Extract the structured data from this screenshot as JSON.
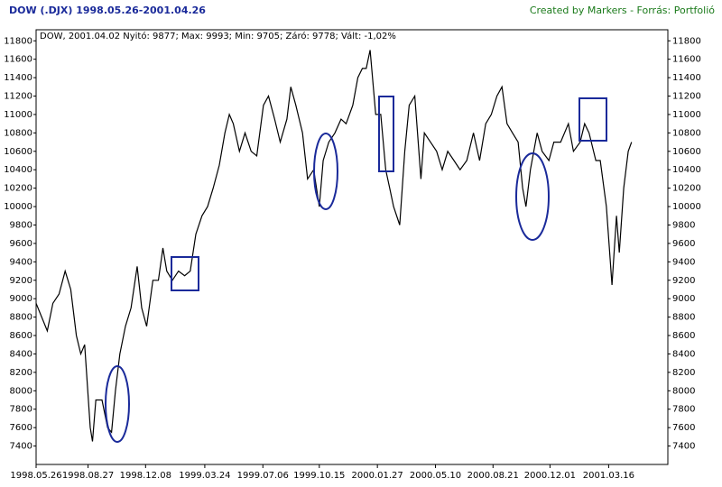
{
  "chart_data": {
    "type": "line",
    "title": "DOW  (.DJX)  1998.05.26-2001.04.26",
    "subtitle": "Created by Markers - Forrás: Portfolió",
    "annotation": "DOW, 2001.04.02 Nyitó: 9877; Max: 9993; Min: 9705; Záró: 9778; Vált: -1,02%",
    "x": [
      "1998.05.26",
      "1998.06.05",
      "1998.06.15",
      "1998.06.25",
      "1998.07.06",
      "1998.07.17",
      "1998.07.27",
      "1998.08.06",
      "1998.08.14",
      "1998.08.21",
      "1998.08.31",
      "1998.09.04",
      "1998.09.10",
      "1998.09.21",
      "1998.10.01",
      "1998.10.08",
      "1998.10.15",
      "1998.10.23",
      "1998.11.02",
      "1998.11.12",
      "1998.11.23",
      "1998.12.01",
      "1998.12.10",
      "1998.12.21",
      "1998.12.31",
      "1999.01.08",
      "1999.01.15",
      "1999.01.25",
      "1999.02.05",
      "1999.02.16",
      "1999.02.26",
      "1999.03.08",
      "1999.03.19",
      "1999.03.29",
      "1999.04.08",
      "1999.04.19",
      "1999.04.29",
      "1999.05.07",
      "1999.05.14",
      "1999.05.25",
      "1999.06.04",
      "1999.06.15",
      "1999.06.25",
      "1999.07.07",
      "1999.07.16",
      "1999.07.27",
      "1999.08.06",
      "1999.08.18",
      "1999.08.25",
      "1999.09.03",
      "1999.09.15",
      "1999.09.24",
      "1999.10.05",
      "1999.10.15",
      "1999.10.22",
      "1999.11.01",
      "1999.11.12",
      "1999.11.23",
      "1999.12.02",
      "1999.12.14",
      "1999.12.23",
      "1999.12.31",
      "2000.01.07",
      "2000.01.14",
      "2000.01.24",
      "2000.02.02",
      "2000.02.11",
      "2000.02.18",
      "2000.02.25",
      "2000.03.07",
      "2000.03.16",
      "2000.03.24",
      "2000.04.03",
      "2000.04.14",
      "2000.04.20",
      "2000.05.01",
      "2000.05.12",
      "2000.05.22",
      "2000.06.01",
      "2000.06.12",
      "2000.06.23",
      "2000.07.05",
      "2000.07.17",
      "2000.07.28",
      "2000.08.08",
      "2000.08.18",
      "2000.08.28",
      "2000.09.06",
      "2000.09.15",
      "2000.09.25",
      "2000.10.05",
      "2000.10.13",
      "2000.10.19",
      "2000.10.27",
      "2000.11.08",
      "2000.11.17",
      "2000.11.29",
      "2000.12.08",
      "2000.12.20",
      "2001.01.03",
      "2001.01.12",
      "2001.01.24",
      "2001.02.01",
      "2001.02.09",
      "2001.02.21",
      "2001.03.01",
      "2001.03.12",
      "2001.03.22",
      "2001.03.30",
      "2001.04.04",
      "2001.04.12",
      "2001.04.20",
      "2001.04.26"
    ],
    "series": [
      {
        "name": "DOW",
        "color": "#000000",
        "values": [
          8950,
          8800,
          8650,
          8950,
          9050,
          9300,
          9100,
          8600,
          8400,
          8500,
          7600,
          7450,
          7900,
          7900,
          7600,
          7550,
          8000,
          8400,
          8700,
          8900,
          9350,
          8900,
          8700,
          9200,
          9200,
          9550,
          9300,
          9200,
          9300,
          9250,
          9300,
          9700,
          9900,
          10000,
          10200,
          10450,
          10800,
          11000,
          10900,
          10600,
          10800,
          10600,
          10550,
          11100,
          11200,
          10950,
          10700,
          10950,
          11300,
          11100,
          10800,
          10300,
          10400,
          10000,
          10500,
          10700,
          10800,
          10950,
          10900,
          11100,
          11400,
          11500,
          11500,
          11700,
          11000,
          11000,
          10400,
          10200,
          10000,
          9800,
          10600,
          11100,
          11200,
          10300,
          10800,
          10700,
          10600,
          10400,
          10600,
          10500,
          10400,
          10500,
          10800,
          10500,
          10900,
          11000,
          11200,
          11300,
          10900,
          10800,
          10700,
          10200,
          10000,
          10400,
          10800,
          10600,
          10500,
          10700,
          10700,
          10900,
          10600,
          10700,
          10900,
          10800,
          10500,
          10500,
          10000,
          9150,
          9900,
          9500,
          10200,
          10600,
          10700
        ]
      }
    ],
    "xlim": [
      "1998.05.26",
      "2001.06.30"
    ],
    "xticks": [
      "1998.05.26",
      "1998.08.27",
      "1998.12.08",
      "1999.03.24",
      "1999.07.06",
      "1999.10.15",
      "2000.01.27",
      "2000.05.10",
      "2000.08.21",
      "2000.12.01",
      "2001.03.16"
    ],
    "ylim": [
      7200,
      11920
    ],
    "yticks": [
      7400,
      7600,
      7800,
      8000,
      8200,
      8400,
      8600,
      8800,
      9000,
      9200,
      9400,
      9600,
      9800,
      10000,
      10200,
      10400,
      10600,
      10800,
      11000,
      11200,
      11400,
      11600,
      11800
    ],
    "grid": false
  }
}
